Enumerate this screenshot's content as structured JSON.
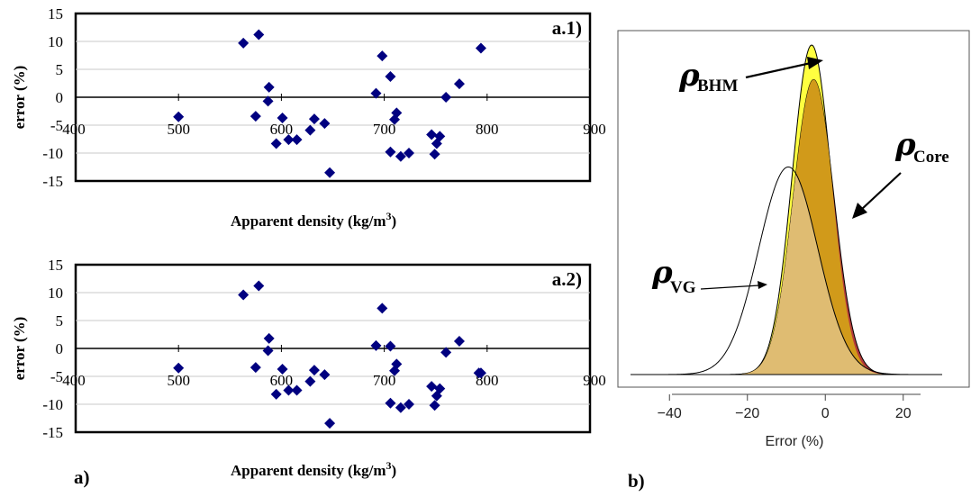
{
  "chart_data": [
    {
      "type": "scatter",
      "panel_label": "a.1)",
      "xlabel": "Apparent density (kg/m",
      "xlabel_sup": "3",
      "xlabel_close": ")",
      "ylabel": "error (%)",
      "xlim": [
        400,
        900
      ],
      "ylim": [
        -15,
        15
      ],
      "y_ticks": [
        "15",
        "10",
        "5",
        "0",
        "-5",
        "-10",
        "-15"
      ],
      "x_ticks": [
        "400",
        "500",
        "600",
        "700",
        "800",
        "900"
      ],
      "marker_color": "#000080",
      "points": [
        [
          500,
          -3.5
        ],
        [
          563,
          9.7
        ],
        [
          575,
          -3.4
        ],
        [
          578,
          11.2
        ],
        [
          588,
          1.8
        ],
        [
          587,
          -0.7
        ],
        [
          595,
          -8.3
        ],
        [
          601,
          -3.7
        ],
        [
          607,
          -7.6
        ],
        [
          615,
          -7.6
        ],
        [
          628,
          -5.9
        ],
        [
          632,
          -3.9
        ],
        [
          642,
          -4.7
        ],
        [
          647,
          -13.5
        ],
        [
          692,
          0.7
        ],
        [
          698,
          7.4
        ],
        [
          706,
          3.7
        ],
        [
          706,
          -9.8
        ],
        [
          710,
          -4.0
        ],
        [
          712,
          -2.8
        ],
        [
          716,
          -10.6
        ],
        [
          724,
          -10.0
        ],
        [
          746,
          -6.7
        ],
        [
          749,
          -10.2
        ],
        [
          751,
          -8.3
        ],
        [
          754,
          -7.0
        ],
        [
          760,
          0.0
        ],
        [
          773,
          2.4
        ],
        [
          794,
          8.8
        ]
      ]
    },
    {
      "type": "scatter",
      "panel_label": "a.2)",
      "xlabel": "Apparent density (kg/m",
      "xlabel_sup": "3",
      "xlabel_close": ")",
      "ylabel": "error (%)",
      "xlim": [
        400,
        900
      ],
      "ylim": [
        -15,
        15
      ],
      "y_ticks": [
        "15",
        "10",
        "5",
        "0",
        "-5",
        "-10",
        "-15"
      ],
      "x_ticks": [
        "400",
        "500",
        "600",
        "700",
        "800",
        "900"
      ],
      "marker_color": "#000080",
      "points": [
        [
          500,
          -3.5
        ],
        [
          563,
          9.6
        ],
        [
          575,
          -3.4
        ],
        [
          578,
          11.2
        ],
        [
          588,
          1.8
        ],
        [
          587,
          -0.4
        ],
        [
          595,
          -8.2
        ],
        [
          601,
          -3.7
        ],
        [
          607,
          -7.5
        ],
        [
          615,
          -7.5
        ],
        [
          628,
          -5.9
        ],
        [
          632,
          -3.9
        ],
        [
          642,
          -4.7
        ],
        [
          647,
          -13.4
        ],
        [
          692,
          0.5
        ],
        [
          698,
          7.2
        ],
        [
          706,
          0.4
        ],
        [
          706,
          -9.8
        ],
        [
          710,
          -4.0
        ],
        [
          712,
          -2.8
        ],
        [
          716,
          -10.6
        ],
        [
          724,
          -10.0
        ],
        [
          746,
          -6.8
        ],
        [
          749,
          -10.2
        ],
        [
          751,
          -8.5
        ],
        [
          754,
          -7.2
        ],
        [
          760,
          -0.7
        ],
        [
          773,
          1.3
        ],
        [
          792,
          -4.4
        ],
        [
          794,
          -4.4
        ]
      ]
    },
    {
      "type": "area",
      "xlabel": "Error (%)",
      "xlim": [
        -50,
        30
      ],
      "x_ticks": [
        "−40",
        "−20",
        "0",
        "20"
      ],
      "x_tick_values": [
        -40,
        -20,
        0,
        20
      ],
      "series": [
        {
          "name": "BHM",
          "mean": -3.5,
          "sd": 5.0,
          "peak": 1.0,
          "color": "#ffff40"
        },
        {
          "name": "Core",
          "mean": -3.0,
          "sd": 5.2,
          "peak": 0.895,
          "color": "#b33a3a"
        },
        {
          "name": "VG",
          "mean": -9.5,
          "sd": 7.6,
          "peak": 0.63,
          "color": "#ffffff"
        }
      ],
      "overlap_colors": {
        "bhm_core": "#d19a1a",
        "vg_fill": "#e0bf7a"
      }
    }
  ],
  "figure_labels": {
    "left": "a)",
    "right": "b)"
  },
  "annotations": {
    "rho_symbol": "ρ",
    "bhm": "BHM",
    "core": "Core",
    "vg": "VG"
  }
}
